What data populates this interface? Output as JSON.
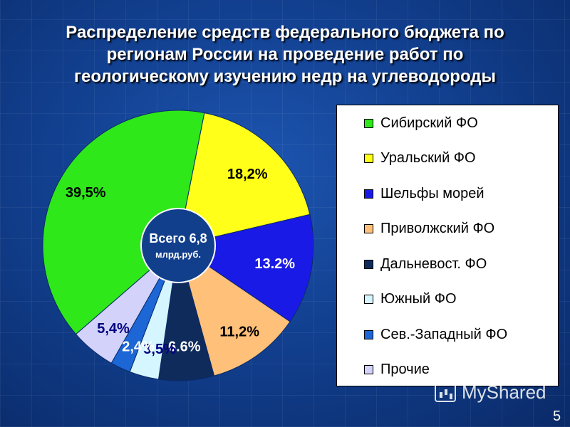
{
  "title": {
    "line1": "Распределение средств федерального бюджета по",
    "line2": "регионам России на проведение работ по",
    "line3": "геологическому изучению недр на углеводороды"
  },
  "center_label": {
    "line1": "Всего 6,8",
    "line2": "млрд.руб."
  },
  "chart_data": {
    "type": "pie",
    "title": "Распределение средств федерального бюджета по регионам России на проведение работ по геологическому изучению недр на углеводороды",
    "unit": "%",
    "total_label": "Всего 6,8 млрд.руб.",
    "legend_position": "right",
    "slices": [
      {
        "name": "Сибирский ФО",
        "value": 39.5,
        "label": "39,5%",
        "color": "#2ee81a",
        "text_color": "#000000"
      },
      {
        "name": "Уральский ФО",
        "value": 18.2,
        "label": "18,2%",
        "color": "#ffff1a",
        "text_color": "#000000"
      },
      {
        "name": "Шельфы морей",
        "value": 13.2,
        "label": "13.2%",
        "color": "#1a1ae6",
        "text_color": "#ffffff"
      },
      {
        "name": "Приволжский ФО",
        "value": 11.2,
        "label": "11,2%",
        "color": "#ffc07a",
        "text_color": "#000000"
      },
      {
        "name": "Дальневост. ФО",
        "value": 6.6,
        "label": "6.6%",
        "color": "#0e2b5c",
        "text_color": "#ffffff"
      },
      {
        "name": "Южный ФО",
        "value": 3.5,
        "label": "3,5%",
        "color": "#d5f6ff",
        "text_color": "#000080"
      },
      {
        "name": "Сев.-Западный ФО",
        "value": 2.4,
        "label": "2,4%",
        "color": "#1c66d6",
        "text_color": "#ffffff"
      },
      {
        "name": "Прочие",
        "value": 5.4,
        "label": "5,4%",
        "color": "#d2d2fa",
        "text_color": "#000080"
      }
    ]
  },
  "legend": {
    "items": [
      {
        "label": "Сибирский ФО",
        "color": "#2ee81a"
      },
      {
        "label": "Уральский ФО",
        "color": "#ffff1a"
      },
      {
        "label": "Шельфы морей",
        "color": "#1a1ae6"
      },
      {
        "label": "Приволжский ФО",
        "color": "#ffc07a"
      },
      {
        "label": "Дальневост. ФО",
        "color": "#0e2b5c"
      },
      {
        "label": "Южный ФО",
        "color": "#d5f6ff"
      },
      {
        "label": "Сев.-Западный ФО",
        "color": "#1c66d6"
      },
      {
        "label": "Прочие",
        "color": "#d2d2fa"
      }
    ]
  },
  "watermark": {
    "text": "MyShared",
    "icon": "presentation-icon"
  },
  "page_number": "5"
}
